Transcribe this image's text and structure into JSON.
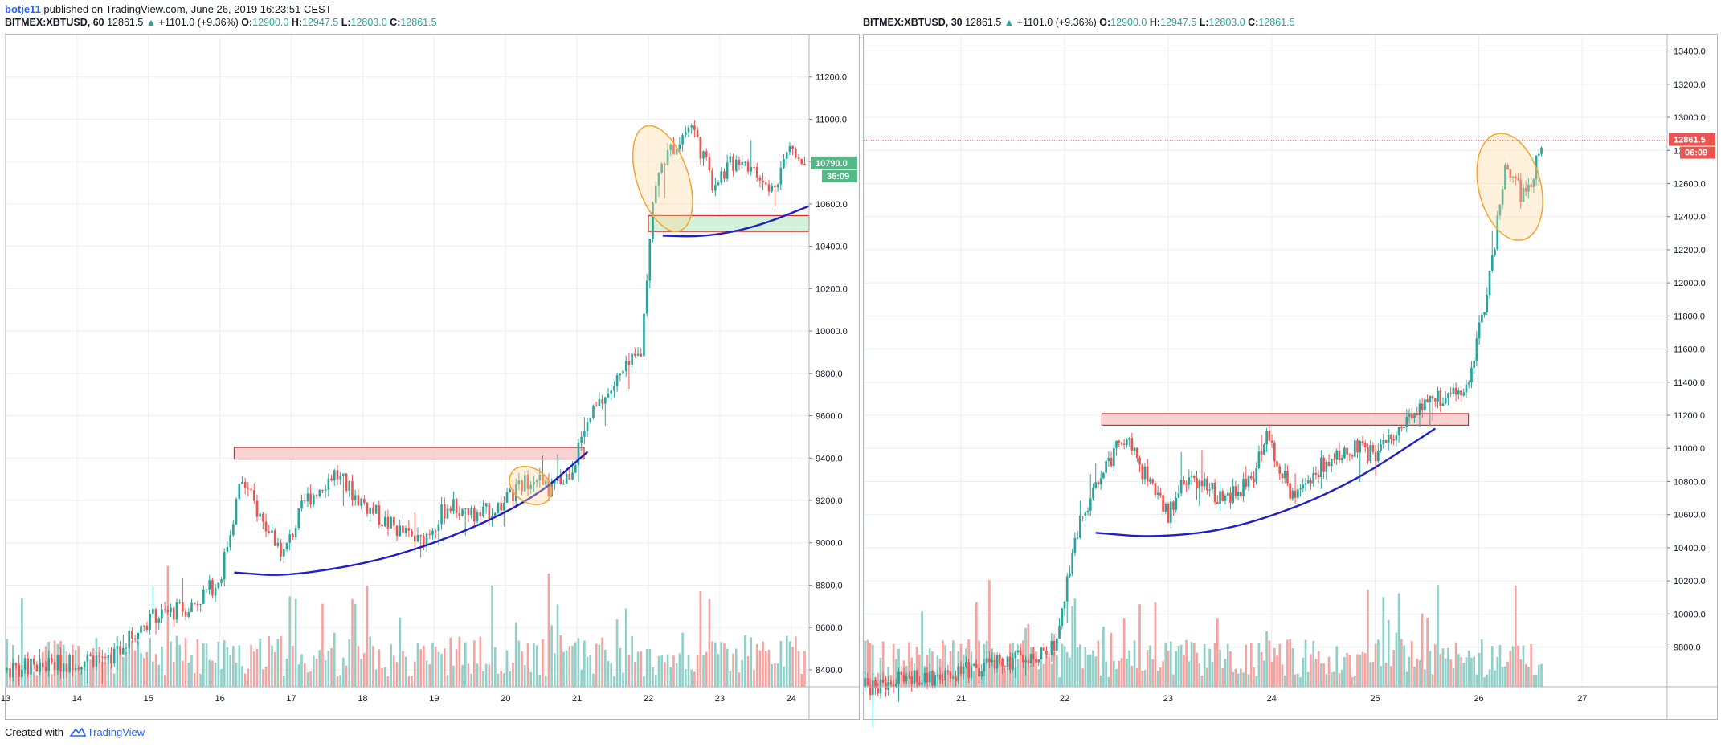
{
  "header": {
    "user": "botje11",
    "published_text": "published on TradingView.com, June 26, 2019 16:23:51 CEST"
  },
  "footer": {
    "created_with": "Created with",
    "brand": "TradingView"
  },
  "colors": {
    "up": "#26a69a",
    "down": "#ef5350",
    "vol_up": "#8fd0c8",
    "vol_down": "#f5a3a1",
    "grid": "#edeef2",
    "trendline": "#1f1fc7",
    "ellipse": "#f2a531",
    "zone_red": "#f7c7c7",
    "zone_green": "#c9efcf"
  },
  "chart_data": [
    {
      "type": "candlestick",
      "quote": {
        "symbol": "BITMEX:XBTUSD, 60",
        "last": "12861.5",
        "change": "+1101.0 (+9.36%)",
        "open": "12900.0",
        "high": "12947.5",
        "low": "12803.0",
        "close": "12861.5"
      },
      "ylim": [
        8320,
        11400
      ],
      "y_ticks": [
        "11200.0",
        "11000.0",
        "10800.0",
        "10600.0",
        "10400.0",
        "10200.0",
        "10000.0",
        "9800.0",
        "9600.0",
        "9400.0",
        "9200.0",
        "9000.0",
        "8800.0",
        "8600.0",
        "8400.0"
      ],
      "x_ticks": [
        "13",
        "14",
        "15",
        "16",
        "17",
        "18",
        "19",
        "20",
        "21",
        "22",
        "23",
        "24"
      ],
      "x_range": [
        13.0,
        24.25
      ],
      "price_label": "10790.0",
      "price_value": 10790,
      "countdown": "36:09",
      "series": [
        {
          "anchors_x": [
            13.0,
            13.8,
            14.5,
            15.0,
            15.6,
            16.0,
            16.3,
            16.6,
            16.9,
            17.2,
            17.6,
            17.9,
            18.3,
            18.8,
            19.2,
            19.6,
            20.0,
            20.4,
            20.6,
            20.9,
            21.2,
            21.6,
            21.9,
            22.05,
            22.2,
            22.6,
            22.9,
            23.3,
            23.7,
            24.0,
            24.2
          ],
          "anchors_y": [
            8400,
            8430,
            8470,
            8640,
            8700,
            8830,
            9300,
            9100,
            8950,
            9200,
            9330,
            9220,
            9100,
            9000,
            9180,
            9120,
            9190,
            9330,
            9240,
            9330,
            9600,
            9780,
            9900,
            10600,
            10800,
            10980,
            10700,
            10830,
            10650,
            10880,
            10790
          ],
          "seed": 7
        }
      ],
      "volume": {
        "seed": 11,
        "max_rel": 0.65
      },
      "zones": [
        {
          "x0": 16.2,
          "x1": 21.1,
          "y0": 9395,
          "y1": 9450,
          "kind": "red"
        },
        {
          "x0": 22.0,
          "x1": 24.25,
          "y0": 10470,
          "y1": 10545,
          "kind": "green"
        }
      ],
      "curves": [
        {
          "pts": [
            [
              16.2,
              8860
            ],
            [
              17.0,
              8840
            ],
            [
              18.6,
              8940
            ],
            [
              20.3,
              9180
            ],
            [
              21.15,
              9430
            ]
          ]
        },
        {
          "pts": [
            [
              22.2,
              10450
            ],
            [
              22.8,
              10445
            ],
            [
              23.5,
              10490
            ],
            [
              24.25,
              10590
            ]
          ]
        }
      ],
      "ellipses": [
        {
          "cx": 22.2,
          "cy": 10720,
          "rx_days": 0.36,
          "ry_price": 260,
          "rot": -18
        },
        {
          "cx": 20.35,
          "cy": 9270,
          "rx_days": 0.32,
          "ry_price": 80,
          "rot": 35
        }
      ]
    },
    {
      "type": "candlestick",
      "quote": {
        "symbol": "BITMEX:XBTUSD, 30",
        "last": "12861.5",
        "change": "+1101.0 (+9.36%)",
        "open": "12900.0",
        "high": "12947.5",
        "low": "12803.0",
        "close": "12861.5"
      },
      "ylim": [
        9560,
        13500
      ],
      "y_ticks": [
        "13400.0",
        "13200.0",
        "13000.0",
        "12800.0",
        "12600.0",
        "12400.0",
        "12200.0",
        "12000.0",
        "11800.0",
        "11600.0",
        "11400.0",
        "11200.0",
        "11000.0",
        "10800.0",
        "10600.0",
        "10400.0",
        "10200.0",
        "10000.0",
        "9800.0"
      ],
      "x_ticks": [
        "21",
        "22",
        "23",
        "24",
        "25",
        "26",
        "27"
      ],
      "x_range": [
        20.06,
        27.82
      ],
      "price_label": "12861.5",
      "price_value": 12861.5,
      "countdown": "06:09",
      "series": [
        {
          "anchors_x": [
            20.06,
            20.6,
            21.0,
            21.5,
            21.9,
            22.1,
            22.3,
            22.6,
            22.8,
            23.0,
            23.2,
            23.5,
            23.8,
            23.95,
            24.2,
            24.5,
            24.8,
            25.0,
            25.3,
            25.6,
            25.9,
            26.1,
            26.25,
            26.45,
            26.62
          ],
          "anchors_y": [
            9560,
            9610,
            9650,
            9720,
            9800,
            10450,
            10800,
            11100,
            10800,
            10600,
            10850,
            10700,
            10780,
            11100,
            10700,
            10900,
            11000,
            10960,
            11200,
            11300,
            11400,
            12000,
            12700,
            12500,
            12861
          ],
          "seed": 23
        }
      ],
      "volume": {
        "seed": 29,
        "max_rel": 0.6
      },
      "zones": [
        {
          "x0": 22.36,
          "x1": 25.9,
          "y0": 11140,
          "y1": 11210,
          "kind": "red"
        }
      ],
      "curves": [
        {
          "pts": [
            [
              22.3,
              10490
            ],
            [
              22.9,
              10460
            ],
            [
              23.7,
              10520
            ],
            [
              24.7,
              10760
            ],
            [
              25.58,
              11120
            ]
          ]
        }
      ],
      "ellipses": [
        {
          "cx": 26.3,
          "cy": 12580,
          "rx_days": 0.3,
          "ry_price": 330,
          "rot": -14
        }
      ]
    }
  ]
}
